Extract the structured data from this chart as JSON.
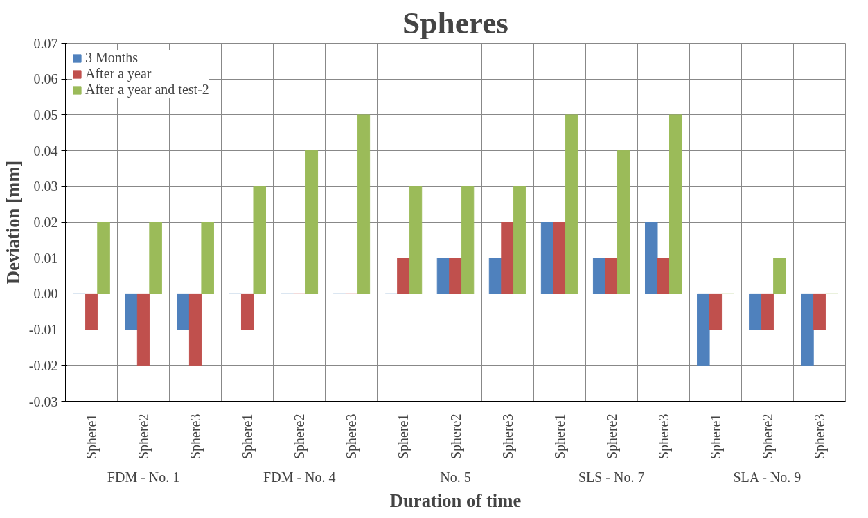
{
  "chart_data": {
    "type": "bar",
    "title": "Spheres",
    "xlabel": "Duration of time",
    "ylabel": "Deviation [mm]",
    "categories": [
      "Sphere1",
      "Sphere2",
      "Sphere3",
      "Sphere1",
      "Sphere2",
      "Sphere3",
      "Sphere1",
      "Sphere2",
      "Sphere3",
      "Sphere1",
      "Sphere2",
      "Sphere3",
      "Sphere1",
      "Sphere2",
      "Sphere3"
    ],
    "annotations": [
      "FDM - No. 1",
      "FDM - No. 4",
      "No. 5",
      "SLS - No. 7",
      "SLA - No. 9"
    ],
    "series": [
      {
        "name": "3 Months",
        "color": "#4f81bd",
        "values": [
          0,
          -0.01,
          -0.01,
          0,
          0,
          0,
          0,
          0.01,
          0.01,
          0.02,
          0.01,
          0.02,
          -0.02,
          -0.01,
          -0.02
        ]
      },
      {
        "name": "After a year",
        "color": "#c0504d",
        "values": [
          -0.01,
          -0.02,
          -0.02,
          -0.01,
          0,
          0,
          0.01,
          0.01,
          0.02,
          0.02,
          0.01,
          0.01,
          -0.01,
          -0.01,
          -0.01
        ]
      },
      {
        "name": "After a year and test-2",
        "color": "#9bbb59",
        "values": [
          0.02,
          0.02,
          0.02,
          0.03,
          0.04,
          0.05,
          0.03,
          0.03,
          0.03,
          0.05,
          0.04,
          0.05,
          0,
          0.01,
          0
        ]
      }
    ],
    "ylim": [
      -0.03,
      0.07
    ],
    "yticks": [
      -0.03,
      -0.02,
      -0.01,
      {
        "value": 0,
        "label": "0.00"
      },
      0.01,
      0.02,
      0.03,
      0.04,
      0.05,
      0.06,
      0.07
    ],
    "grid": true,
    "legend": "top left"
  }
}
